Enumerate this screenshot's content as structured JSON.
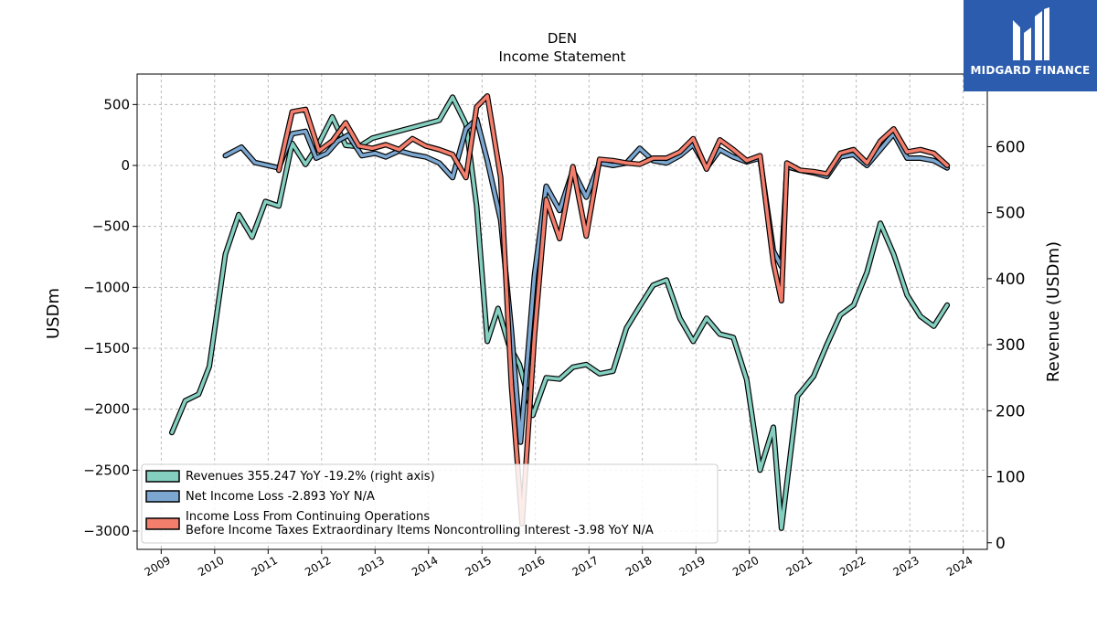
{
  "header": {
    "ticker": "DEN",
    "subtitle": "Income Statement"
  },
  "logo": {
    "text": "MIDGARD FINANCE",
    "bg": "#2b5cad"
  },
  "chart_data": {
    "type": "line",
    "left_axis": {
      "label": "USDm",
      "ylim": [
        -3150,
        750
      ],
      "ticks": [
        500,
        0,
        -500,
        -1000,
        -1500,
        -2000,
        -2500,
        -3000
      ]
    },
    "right_axis": {
      "label": "Revenue (USDm)",
      "ylim": [
        -10,
        710
      ],
      "ticks": [
        0,
        100,
        200,
        300,
        400,
        500,
        600
      ]
    },
    "x_axis": {
      "xlim": [
        2008.55,
        2024.45
      ],
      "ticks": [
        2009,
        2010,
        2011,
        2012,
        2013,
        2014,
        2015,
        2016,
        2017,
        2018,
        2019,
        2020,
        2021,
        2022,
        2023,
        2024
      ]
    },
    "grid": true,
    "legend_position": "lower-left",
    "series": [
      {
        "name": "Revenues  355.247 YoY -19.2% (right axis)",
        "axis": "right",
        "color": "#84cfc0",
        "points": [
          [
            2009.2,
            167
          ],
          [
            2009.45,
            215
          ],
          [
            2009.7,
            225
          ],
          [
            2009.9,
            267
          ],
          [
            2010.2,
            437
          ],
          [
            2010.45,
            497
          ],
          [
            2010.7,
            463
          ],
          [
            2010.95,
            517
          ],
          [
            2011.2,
            510
          ],
          [
            2011.45,
            605
          ],
          [
            2011.7,
            573
          ],
          [
            2011.95,
            605
          ],
          [
            2012.2,
            645
          ],
          [
            2012.45,
            602
          ],
          [
            2012.7,
            600
          ],
          [
            2012.95,
            613
          ],
          [
            2014.2,
            640
          ],
          [
            2014.45,
            675
          ],
          [
            2014.7,
            634
          ],
          [
            2014.9,
            510
          ],
          [
            2015.1,
            305
          ],
          [
            2015.3,
            355
          ],
          [
            2015.5,
            300
          ],
          [
            2015.7,
            270
          ],
          [
            2015.95,
            193
          ],
          [
            2016.2,
            250
          ],
          [
            2016.45,
            248
          ],
          [
            2016.7,
            266
          ],
          [
            2016.95,
            270
          ],
          [
            2017.2,
            256
          ],
          [
            2017.45,
            260
          ],
          [
            2017.7,
            325
          ],
          [
            2017.95,
            358
          ],
          [
            2018.2,
            390
          ],
          [
            2018.45,
            398
          ],
          [
            2018.7,
            340
          ],
          [
            2018.95,
            305
          ],
          [
            2019.2,
            340
          ],
          [
            2019.45,
            316
          ],
          [
            2019.7,
            311
          ],
          [
            2019.95,
            247
          ],
          [
            2020.2,
            110
          ],
          [
            2020.45,
            175
          ],
          [
            2020.6,
            22
          ],
          [
            2020.9,
            222
          ],
          [
            2021.2,
            252
          ],
          [
            2021.45,
            300
          ],
          [
            2021.7,
            345
          ],
          [
            2021.95,
            360
          ],
          [
            2022.2,
            410
          ],
          [
            2022.45,
            484
          ],
          [
            2022.7,
            437
          ],
          [
            2022.95,
            375
          ],
          [
            2023.2,
            343
          ],
          [
            2023.45,
            328
          ],
          [
            2023.7,
            360
          ]
        ]
      },
      {
        "name": "Net Income Loss  -2.893 YoY N/A",
        "axis": "left",
        "color": "#7ba7d0",
        "points": [
          [
            2010.2,
            80
          ],
          [
            2010.5,
            150
          ],
          [
            2010.75,
            25
          ],
          [
            2011.2,
            -20
          ],
          [
            2011.45,
            260
          ],
          [
            2011.7,
            280
          ],
          [
            2011.9,
            60
          ],
          [
            2012.1,
            100
          ],
          [
            2012.3,
            200
          ],
          [
            2012.5,
            250
          ],
          [
            2012.75,
            80
          ],
          [
            2013.0,
            100
          ],
          [
            2013.2,
            70
          ],
          [
            2013.45,
            120
          ],
          [
            2013.7,
            90
          ],
          [
            2013.95,
            70
          ],
          [
            2014.2,
            20
          ],
          [
            2014.45,
            -100
          ],
          [
            2014.7,
            300
          ],
          [
            2014.9,
            380
          ],
          [
            2015.1,
            40
          ],
          [
            2015.35,
            -450
          ],
          [
            2015.55,
            -1350
          ],
          [
            2015.72,
            -2270
          ],
          [
            2015.98,
            -900
          ],
          [
            2016.2,
            -170
          ],
          [
            2016.45,
            -370
          ],
          [
            2016.7,
            -40
          ],
          [
            2016.95,
            -260
          ],
          [
            2017.2,
            20
          ],
          [
            2017.45,
            0
          ],
          [
            2017.7,
            20
          ],
          [
            2017.95,
            140
          ],
          [
            2018.2,
            40
          ],
          [
            2018.45,
            20
          ],
          [
            2018.7,
            80
          ],
          [
            2018.95,
            170
          ],
          [
            2019.2,
            -20
          ],
          [
            2019.45,
            130
          ],
          [
            2019.7,
            70
          ],
          [
            2019.95,
            30
          ],
          [
            2020.2,
            60
          ],
          [
            2020.45,
            -700
          ],
          [
            2020.6,
            -830
          ],
          [
            2020.7,
            -10
          ],
          [
            2020.95,
            -40
          ],
          [
            2021.2,
            -60
          ],
          [
            2021.45,
            -90
          ],
          [
            2021.7,
            70
          ],
          [
            2021.95,
            90
          ],
          [
            2022.2,
            0
          ],
          [
            2022.45,
            130
          ],
          [
            2022.7,
            260
          ],
          [
            2022.95,
            60
          ],
          [
            2023.2,
            60
          ],
          [
            2023.45,
            40
          ],
          [
            2023.7,
            -20
          ]
        ]
      },
      {
        "name": "Income Loss From Continuing Operations\nBefore Income Taxes Extraordinary Items Noncontrolling Interest  -3.98 YoY N/A",
        "axis": "left",
        "color": "#f47e6c",
        "points": [
          [
            2011.2,
            -40
          ],
          [
            2011.45,
            440
          ],
          [
            2011.7,
            460
          ],
          [
            2011.95,
            120
          ],
          [
            2012.2,
            200
          ],
          [
            2012.45,
            350
          ],
          [
            2012.7,
            160
          ],
          [
            2012.95,
            140
          ],
          [
            2013.2,
            170
          ],
          [
            2013.45,
            130
          ],
          [
            2013.7,
            220
          ],
          [
            2013.95,
            160
          ],
          [
            2014.2,
            130
          ],
          [
            2014.45,
            90
          ],
          [
            2014.7,
            -100
          ],
          [
            2014.9,
            480
          ],
          [
            2015.1,
            570
          ],
          [
            2015.35,
            -100
          ],
          [
            2015.55,
            -1800
          ],
          [
            2015.75,
            -2940
          ],
          [
            2015.98,
            -1400
          ],
          [
            2016.2,
            -280
          ],
          [
            2016.45,
            -600
          ],
          [
            2016.7,
            -10
          ],
          [
            2016.95,
            -580
          ],
          [
            2017.2,
            50
          ],
          [
            2017.45,
            40
          ],
          [
            2017.7,
            20
          ],
          [
            2017.95,
            10
          ],
          [
            2018.2,
            60
          ],
          [
            2018.45,
            60
          ],
          [
            2018.7,
            110
          ],
          [
            2018.95,
            220
          ],
          [
            2019.2,
            -30
          ],
          [
            2019.45,
            210
          ],
          [
            2019.7,
            130
          ],
          [
            2019.95,
            40
          ],
          [
            2020.2,
            80
          ],
          [
            2020.45,
            -800
          ],
          [
            2020.6,
            -1110
          ],
          [
            2020.7,
            20
          ],
          [
            2020.95,
            -40
          ],
          [
            2021.2,
            -50
          ],
          [
            2021.45,
            -70
          ],
          [
            2021.7,
            100
          ],
          [
            2021.95,
            130
          ],
          [
            2022.2,
            20
          ],
          [
            2022.45,
            200
          ],
          [
            2022.7,
            300
          ],
          [
            2022.95,
            110
          ],
          [
            2023.2,
            130
          ],
          [
            2023.45,
            100
          ],
          [
            2023.7,
            0
          ]
        ]
      }
    ]
  }
}
